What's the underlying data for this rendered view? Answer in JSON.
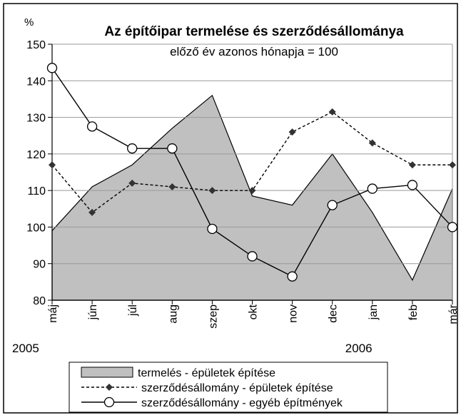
{
  "chart_data": {
    "type": "line",
    "title": "Az építőipar termelése és szerződésállománya",
    "subtitle": "előző év azonos hónapja = 100",
    "y_label": "%",
    "categories": [
      "máj",
      "jún",
      "júl",
      "aug",
      "szep",
      "okt",
      "nov",
      "dec",
      "jan",
      "feb",
      "már"
    ],
    "annotations": [
      "2005",
      "2006"
    ],
    "series": [
      {
        "name": "termelés - épületek építése",
        "color": "#c0c0c0",
        "style": "area",
        "values": [
          99,
          111,
          117,
          127,
          136,
          108.5,
          106,
          120,
          104,
          85.5,
          110.5
        ]
      },
      {
        "name": "szerződésállomány - épületek építése",
        "color": "#000000",
        "style": "dashed-diamond",
        "values": [
          117,
          104,
          112,
          111,
          110,
          110,
          126,
          131.5,
          123,
          117,
          117
        ]
      },
      {
        "name": "szerződésállomány - egyéb építmények",
        "color": "#000000",
        "style": "solid-circle",
        "values": [
          143.5,
          127.5,
          121.5,
          121.5,
          99.5,
          92,
          86.5,
          106,
          110.5,
          111.5,
          100
        ]
      }
    ],
    "ylim": [
      80,
      150
    ],
    "yticks": [
      80,
      90,
      100,
      110,
      120,
      130,
      140,
      150
    ],
    "grid": true
  }
}
